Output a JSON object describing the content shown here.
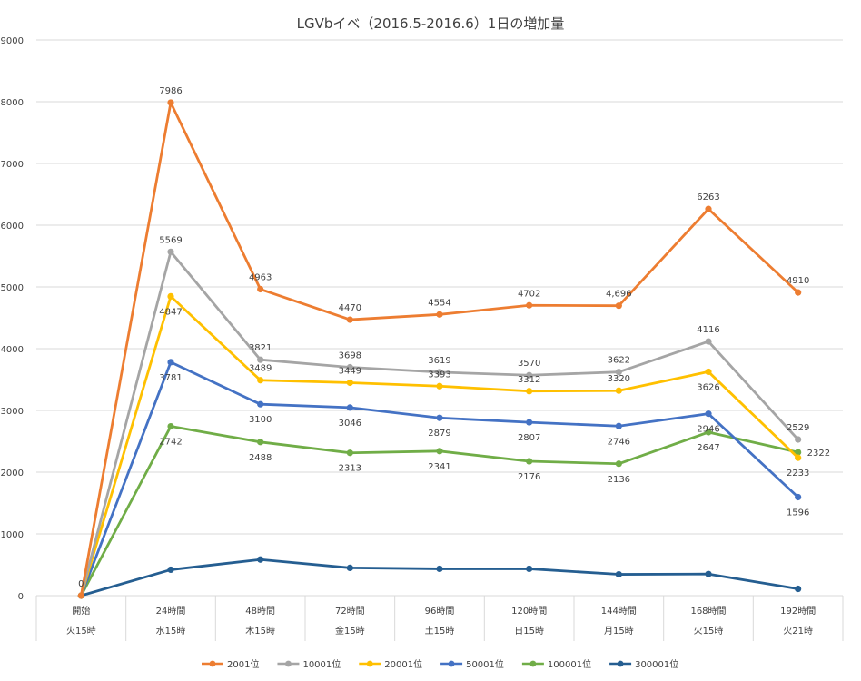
{
  "chart_data": {
    "type": "line",
    "title": "LGVbイベ（2016.5-2016.6）1日の増加量",
    "xlabel": "",
    "ylabel": "",
    "ylim": [
      0,
      9000
    ],
    "yticks": [
      0,
      1000,
      2000,
      3000,
      4000,
      5000,
      6000,
      7000,
      8000,
      9000
    ],
    "grid": "horizontal",
    "legend": "bottom",
    "categories": [
      {
        "top": "開始",
        "bottom": "火15時"
      },
      {
        "top": "24時間",
        "bottom": "水15時"
      },
      {
        "top": "48時間",
        "bottom": "木15時"
      },
      {
        "top": "72時間",
        "bottom": "金15時"
      },
      {
        "top": "96時間",
        "bottom": "土15時"
      },
      {
        "top": "120時間",
        "bottom": "日15時"
      },
      {
        "top": "144時間",
        "bottom": "月15時"
      },
      {
        "top": "168時間",
        "bottom": "火15時"
      },
      {
        "top": "192時間",
        "bottom": "火21時"
      }
    ],
    "series": [
      {
        "name": "2001位",
        "color": "#ED7D31",
        "values": [
          0,
          7986,
          4963,
          4470,
          4554,
          4702,
          4696,
          6263,
          4910
        ],
        "labels": [
          "0",
          "7986",
          "4963",
          "4470",
          "4554",
          "4702",
          "4,696",
          "6263",
          "4910"
        ],
        "label_pos": [
          "above",
          "above",
          "above",
          "above",
          "above",
          "above",
          "above",
          "above",
          "above"
        ]
      },
      {
        "name": "10001位",
        "color": "#A5A5A5",
        "values": [
          0,
          5569,
          3821,
          3698,
          3619,
          3570,
          3622,
          4116,
          2529
        ],
        "labels": [
          "",
          "5569",
          "3821",
          "3698",
          "3619",
          "3570",
          "3622",
          "4116",
          "2529"
        ],
        "label_pos": [
          "above",
          "above",
          "above",
          "above",
          "above",
          "above",
          "above",
          "above",
          "above"
        ]
      },
      {
        "name": "20001位",
        "color": "#FFC000",
        "values": [
          0,
          4847,
          3489,
          3449,
          3393,
          3312,
          3320,
          3626,
          2233
        ],
        "labels": [
          "",
          "4847",
          "3489",
          "3449",
          "3393",
          "3312",
          "3320",
          "3626",
          "2233"
        ],
        "label_pos": [
          "below",
          "below",
          "above",
          "above",
          "above",
          "above",
          "above",
          "below",
          "below"
        ]
      },
      {
        "name": "50001位",
        "color": "#4472C4",
        "values": [
          0,
          3781,
          3100,
          3046,
          2879,
          2807,
          2746,
          2946,
          1596
        ],
        "labels": [
          "",
          "3781",
          "3100",
          "3046",
          "2879",
          "2807",
          "2746",
          "2946",
          "1596"
        ],
        "label_pos": [
          "below",
          "below",
          "below",
          "below",
          "below",
          "below",
          "below",
          "below",
          "below"
        ]
      },
      {
        "name": "100001位",
        "color": "#70AD47",
        "values": [
          0,
          2742,
          2488,
          2313,
          2341,
          2176,
          2136,
          2647,
          2322
        ],
        "labels": [
          "",
          "2742",
          "2488",
          "2313",
          "2341",
          "2176",
          "2136",
          "2647",
          "2322"
        ],
        "label_pos": [
          "below",
          "below",
          "below",
          "below",
          "below",
          "below",
          "below",
          "below",
          "right"
        ]
      },
      {
        "name": "300001位",
        "color": "#255E91",
        "values": [
          0,
          420,
          585,
          450,
          435,
          435,
          345,
          350,
          110
        ],
        "labels": [
          "",
          "",
          "",
          "",
          "",
          "",
          "",
          "",
          ""
        ],
        "label_pos": [
          "above",
          "above",
          "above",
          "above",
          "above",
          "above",
          "above",
          "above",
          "above"
        ]
      }
    ]
  }
}
